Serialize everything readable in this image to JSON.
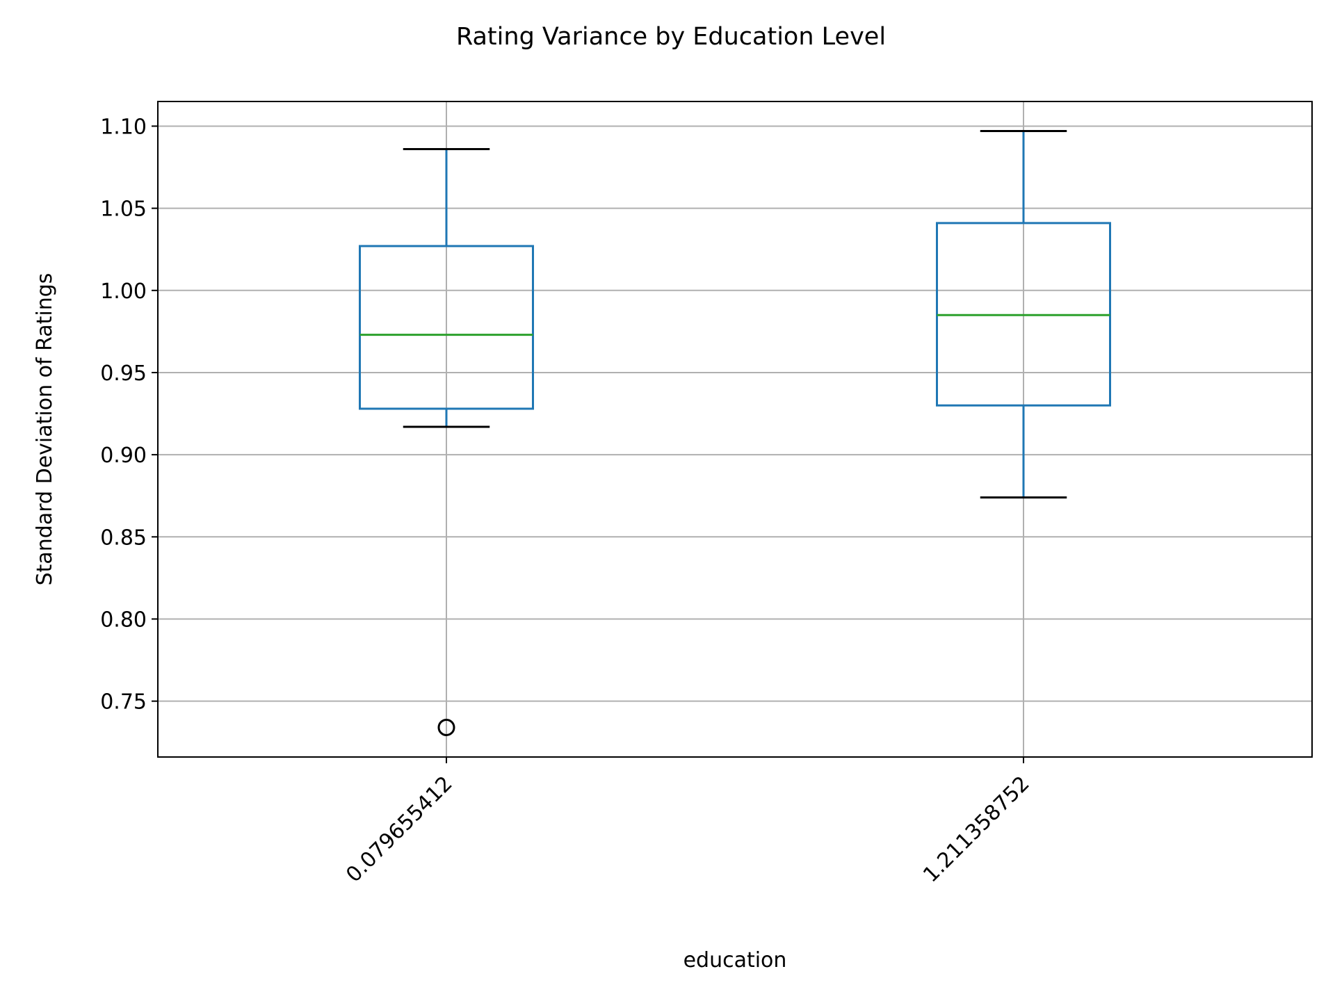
{
  "chart_data": {
    "type": "box",
    "title": "Rating Variance by Education Level",
    "xlabel": "education",
    "ylabel": "Standard Deviation of Ratings",
    "ylim": [
      0.716,
      1.115
    ],
    "yticks": [
      0.75,
      0.8,
      0.85,
      0.9,
      0.95,
      1.0,
      1.05,
      1.1
    ],
    "ytick_labels": [
      "0.75",
      "0.80",
      "0.85",
      "0.90",
      "0.95",
      "1.00",
      "1.05",
      "1.10"
    ],
    "grid": true,
    "categories": [
      "0.079655412",
      "1.211358752"
    ],
    "boxes": [
      {
        "whisker_low": 0.917,
        "q1": 0.928,
        "median": 0.973,
        "q3": 1.027,
        "whisker_high": 1.086,
        "outliers": [
          0.734
        ]
      },
      {
        "whisker_low": 0.874,
        "q1": 0.93,
        "median": 0.985,
        "q3": 1.041,
        "whisker_high": 1.097,
        "outliers": []
      }
    ],
    "colors": {
      "box": "#1f77b4",
      "median": "#2ca02c",
      "whisker_cap": "#000000",
      "grid": "#b0b0b0",
      "outlier": "#000000"
    }
  }
}
